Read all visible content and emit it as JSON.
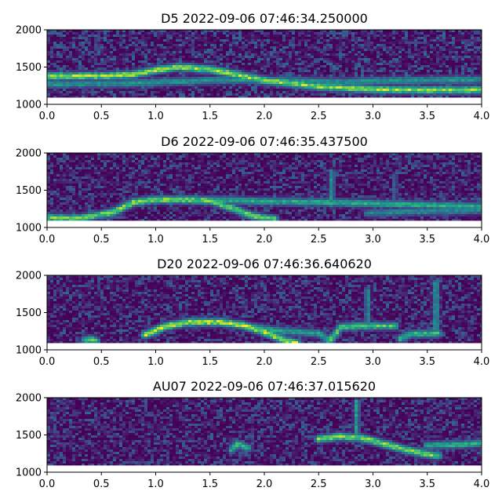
{
  "chart_data": [
    {
      "type": "heatmap",
      "title": "D5 2022-09-06 07:46:34.250000",
      "xlabel": "",
      "ylabel": "",
      "xlim": [
        0.0,
        4.0
      ],
      "ylim": [
        1000,
        2000
      ],
      "x_ticks": [
        "0.0",
        "0.5",
        "1.0",
        "1.5",
        "2.0",
        "2.5",
        "3.0",
        "3.5",
        "4.0"
      ],
      "y_ticks": [
        "1000",
        "1500",
        "2000"
      ],
      "colormap": "viridis",
      "grid": false,
      "blank_band_below": 1090,
      "noise_level": 0.22,
      "tracks": [
        {
          "points": [
            [
              0.0,
              1380
            ],
            [
              0.5,
              1380
            ],
            [
              0.8,
              1400
            ],
            [
              1.0,
              1460
            ],
            [
              1.2,
              1500
            ],
            [
              1.5,
              1470
            ],
            [
              1.8,
              1380
            ],
            [
              2.0,
              1320
            ],
            [
              2.5,
              1240
            ],
            [
              3.0,
              1200
            ],
            [
              3.5,
              1190
            ],
            [
              4.0,
              1190
            ]
          ],
          "intensity": 0.9
        },
        {
          "points": [
            [
              0.0,
              1270
            ],
            [
              0.7,
              1280
            ],
            [
              1.5,
              1320
            ],
            [
              2.0,
              1330
            ],
            [
              2.6,
              1300
            ],
            [
              3.2,
              1320
            ],
            [
              4.0,
              1330
            ]
          ],
          "intensity": 0.55
        }
      ]
    },
    {
      "type": "heatmap",
      "title": "D6 2022-09-06 07:46:35.437500",
      "xlabel": "",
      "ylabel": "",
      "xlim": [
        0.0,
        4.0
      ],
      "ylim": [
        1000,
        2000
      ],
      "x_ticks": [
        "0.0",
        "0.5",
        "1.0",
        "1.5",
        "2.0",
        "2.5",
        "3.0",
        "3.5",
        "4.0"
      ],
      "y_ticks": [
        "1000",
        "1500",
        "2000"
      ],
      "colormap": "viridis",
      "grid": false,
      "blank_band_below": 1090,
      "noise_level": 0.2,
      "tracks": [
        {
          "points": [
            [
              0.0,
              1130
            ],
            [
              0.3,
              1120
            ],
            [
              0.6,
              1200
            ],
            [
              0.8,
              1340
            ],
            [
              1.0,
              1370
            ],
            [
              1.3,
              1370
            ],
            [
              1.5,
              1360
            ]
          ],
          "intensity": 0.85
        },
        {
          "points": [
            [
              1.5,
              1360
            ],
            [
              1.7,
              1260
            ],
            [
              1.9,
              1150
            ],
            [
              2.1,
              1110
            ]
          ],
          "intensity": 0.8
        },
        {
          "points": [
            [
              1.5,
              1370
            ],
            [
              2.0,
              1350
            ],
            [
              2.5,
              1340
            ],
            [
              3.0,
              1320
            ],
            [
              3.5,
              1300
            ],
            [
              4.0,
              1280
            ]
          ],
          "intensity": 0.65
        },
        {
          "points": [
            [
              2.95,
              1190
            ],
            [
              3.3,
              1210
            ],
            [
              3.7,
              1220
            ],
            [
              4.0,
              1230
            ]
          ],
          "intensity": 0.5
        },
        {
          "points": [
            [
              2.62,
              1300
            ],
            [
              2.62,
              1750
            ]
          ],
          "intensity": 0.55,
          "width": 1.2
        },
        {
          "points": [
            [
              3.2,
              1350
            ],
            [
              3.2,
              1700
            ]
          ],
          "intensity": 0.35,
          "width": 1
        }
      ]
    },
    {
      "type": "heatmap",
      "title": "D20 2022-09-06 07:46:36.640620",
      "xlabel": "",
      "ylabel": "",
      "xlim": [
        0.0,
        4.0
      ],
      "ylim": [
        1000,
        2000
      ],
      "x_ticks": [
        "0.0",
        "0.5",
        "1.0",
        "1.5",
        "2.0",
        "2.5",
        "3.0",
        "3.5",
        "4.0"
      ],
      "y_ticks": [
        "1000",
        "1500",
        "2000"
      ],
      "colormap": "viridis",
      "grid": false,
      "blank_band_below": 1090,
      "noise_level": 0.2,
      "tracks": [
        {
          "points": [
            [
              0.35,
              1130
            ],
            [
              0.4,
              1140
            ],
            [
              0.45,
              1120
            ]
          ],
          "intensity": 0.8
        },
        {
          "points": [
            [
              0.9,
              1200
            ],
            [
              1.1,
              1320
            ],
            [
              1.3,
              1370
            ],
            [
              1.6,
              1370
            ],
            [
              1.8,
              1330
            ],
            [
              2.0,
              1240
            ],
            [
              2.2,
              1120
            ],
            [
              2.3,
              1090
            ]
          ],
          "intensity": 0.95
        },
        {
          "points": [
            [
              1.8,
              1330
            ],
            [
              2.1,
              1260
            ],
            [
              2.5,
              1220
            ],
            [
              2.6,
              1130
            ]
          ],
          "intensity": 0.6
        },
        {
          "points": [
            [
              2.6,
              1110
            ],
            [
              2.7,
              1300
            ],
            [
              2.85,
              1320
            ],
            [
              3.2,
              1320
            ]
          ],
          "intensity": 0.75
        },
        {
          "points": [
            [
              3.25,
              1150
            ],
            [
              3.35,
              1210
            ],
            [
              3.6,
              1220
            ]
          ],
          "intensity": 0.7
        },
        {
          "points": [
            [
              2.95,
              1300
            ],
            [
              2.95,
              1800
            ]
          ],
          "intensity": 0.5,
          "width": 1.2
        },
        {
          "points": [
            [
              3.58,
              1200
            ],
            [
              3.58,
              1900
            ]
          ],
          "intensity": 0.55,
          "width": 1.4
        }
      ]
    },
    {
      "type": "heatmap",
      "title": "AU07 2022-09-06 07:46:37.015620",
      "xlabel": "",
      "ylabel": "",
      "xlim": [
        0.0,
        4.0
      ],
      "ylim": [
        1000,
        2000
      ],
      "x_ticks": [
        "0.0",
        "0.5",
        "1.0",
        "1.5",
        "2.0",
        "2.5",
        "3.0",
        "3.5",
        "4.0"
      ],
      "y_ticks": [
        "1000",
        "1500",
        "2000"
      ],
      "colormap": "viridis",
      "grid": false,
      "blank_band_below": 1090,
      "noise_level": 0.2,
      "tracks": [
        {
          "points": [
            [
              1.7,
              1300
            ],
            [
              1.75,
              1380
            ],
            [
              1.85,
              1320
            ]
          ],
          "intensity": 0.7
        },
        {
          "points": [
            [
              2.5,
              1440
            ],
            [
              2.7,
              1480
            ],
            [
              2.9,
              1460
            ],
            [
              3.1,
              1380
            ],
            [
              3.3,
              1300
            ],
            [
              3.5,
              1240
            ],
            [
              3.6,
              1220
            ]
          ],
          "intensity": 0.85
        },
        {
          "points": [
            [
              3.5,
              1360
            ],
            [
              3.8,
              1370
            ],
            [
              4.0,
              1390
            ]
          ],
          "intensity": 0.65
        },
        {
          "points": [
            [
              2.85,
              1450
            ],
            [
              2.85,
              1950
            ]
          ],
          "intensity": 0.6,
          "width": 1.2
        }
      ]
    }
  ]
}
